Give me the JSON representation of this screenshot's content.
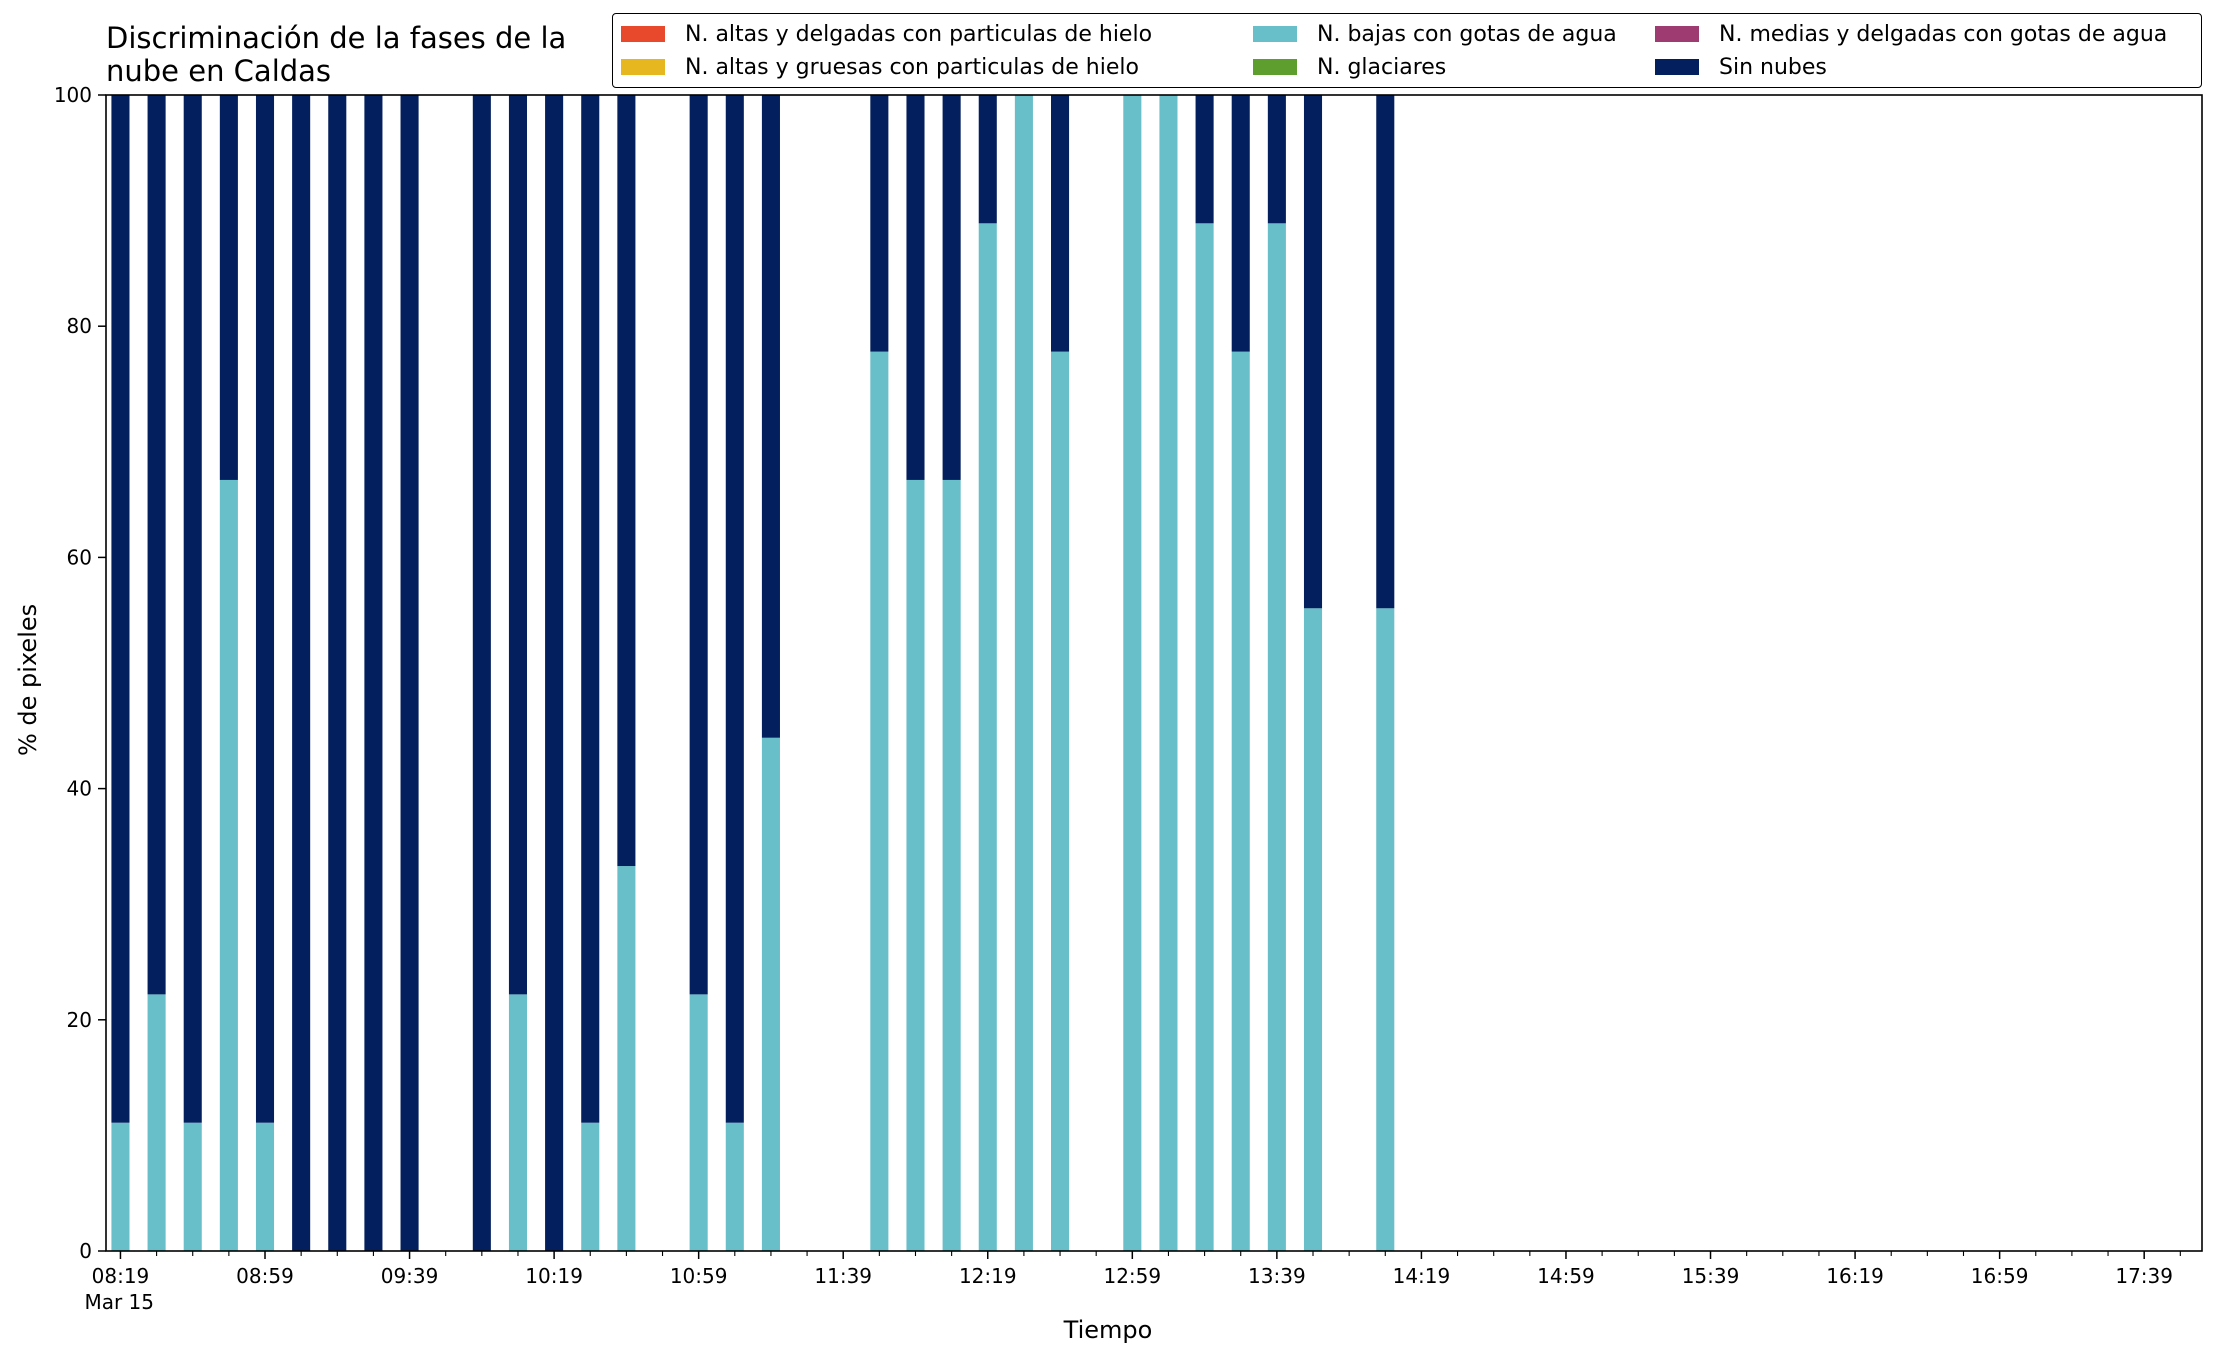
{
  "chart_data": {
    "type": "bar",
    "stacked": true,
    "title": "Discriminación de la fases de la\nnube en Caldas",
    "xlabel": "Tiempo",
    "ylabel": "% de pixeles",
    "ylim": [
      0,
      100
    ],
    "yticks": [
      0,
      20,
      40,
      60,
      80,
      100
    ],
    "x_range": [
      "08:15",
      "17:55"
    ],
    "date_label": "Mar 15",
    "xtick_labels": [
      "08:19",
      "08:59",
      "09:39",
      "10:19",
      "10:59",
      "11:39",
      "12:19",
      "12:59",
      "13:39",
      "14:19",
      "14:59",
      "15:39",
      "16:19",
      "16:59",
      "17:39"
    ],
    "grid": false,
    "legend_position": "top-right",
    "legend": [
      {
        "label": "N. altas y delgadas con particulas de hielo",
        "color": "#e8482c"
      },
      {
        "label": "N. altas y gruesas con particulas de hielo",
        "color": "#e6b71e"
      },
      {
        "label": "N. bajas con gotas de agua",
        "color": "#68bfc9"
      },
      {
        "label": "N. glaciares",
        "color": "#5e9e2e"
      },
      {
        "label": "N. medias y delgadas con gotas de agua",
        "color": "#9e3c72"
      },
      {
        "label": "Sin nubes",
        "color": "#041f5e"
      }
    ],
    "categories": [
      "08:19",
      "08:29",
      "08:39",
      "08:49",
      "08:59",
      "09:09",
      "09:19",
      "09:29",
      "09:39",
      "09:59",
      "10:09",
      "10:19",
      "10:29",
      "10:39",
      "10:59",
      "11:09",
      "11:19",
      "11:49",
      "11:59",
      "12:09",
      "12:19",
      "12:29",
      "12:39",
      "12:59",
      "13:09",
      "13:19",
      "13:29",
      "13:39",
      "13:49",
      "14:09"
    ],
    "series": [
      {
        "name": "N. bajas con gotas de agua",
        "color": "#68bfc9",
        "values": [
          11.1,
          22.2,
          11.1,
          66.7,
          11.1,
          0,
          0,
          0,
          0,
          0,
          22.2,
          0,
          11.1,
          33.3,
          22.2,
          11.1,
          44.4,
          77.8,
          66.7,
          66.7,
          88.9,
          100,
          77.8,
          100,
          100,
          88.9,
          77.8,
          88.9,
          55.6,
          55.6
        ]
      },
      {
        "name": "Sin nubes",
        "color": "#041f5e",
        "values": [
          88.9,
          77.8,
          88.9,
          33.3,
          88.9,
          100,
          100,
          100,
          100,
          100,
          77.8,
          100,
          88.9,
          66.7,
          77.8,
          88.9,
          55.6,
          22.2,
          33.3,
          33.3,
          11.1,
          0,
          22.2,
          0,
          0,
          11.1,
          22.2,
          11.1,
          44.4,
          44.4
        ]
      }
    ]
  }
}
